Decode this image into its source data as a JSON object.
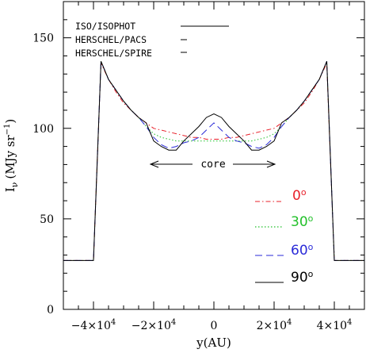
{
  "chart_data": {
    "type": "line",
    "xlabel": "y(AU)",
    "ylabel": "I",
    "ylabel_sub": "ν",
    "ylabel_unit": "(MJy sr",
    "ylabel_sup": "−1",
    "ylabel_close": ")",
    "xlim": [
      -50000,
      50000
    ],
    "ylim": [
      0,
      170
    ],
    "x_ticks": [
      {
        "value": -40000,
        "label": "−4×10",
        "exp": "4"
      },
      {
        "value": -20000,
        "label": "−2×10",
        "exp": "4"
      },
      {
        "value": 0,
        "label": "0",
        "exp": ""
      },
      {
        "value": 20000,
        "label": "2×10",
        "exp": "4"
      },
      {
        "value": 40000,
        "label": "4×10",
        "exp": "4"
      }
    ],
    "y_ticks": [
      {
        "value": 0,
        "label": "0"
      },
      {
        "value": 50,
        "label": "50"
      },
      {
        "value": 100,
        "label": "100"
      },
      {
        "value": 150,
        "label": "150"
      }
    ],
    "instrument_legend": [
      {
        "label": "ISO/ISOPHOT",
        "line": "long"
      },
      {
        "label": "HERSCHEL/PACS",
        "line": "short"
      },
      {
        "label": "HERSCHEL/SPIRE",
        "line": "short"
      }
    ],
    "annotation": {
      "text": "core",
      "x_from": -20000,
      "x_to": 20000,
      "y": 80
    },
    "series": [
      {
        "name": "0",
        "unit": "o",
        "color": "#e8202a",
        "dash": "6,3,1.5,3",
        "x": [
          -50000,
          -40000,
          -37500,
          -35000,
          -32500,
          -30000,
          -27500,
          -25000,
          -22500,
          -20000,
          -17500,
          -15000,
          -12500,
          -10000,
          -7500,
          -5000,
          -2500,
          0,
          2500,
          5000,
          7500,
          10000,
          12500,
          15000,
          17500,
          20000,
          22500,
          25000,
          27500,
          30000,
          32500,
          35000,
          37500,
          40000,
          50000
        ],
        "y": [
          27,
          27,
          136,
          127,
          120,
          114,
          110,
          106,
          103,
          100,
          99,
          98,
          97,
          96,
          95,
          95,
          94,
          94,
          94,
          95,
          95,
          96,
          97,
          98,
          99,
          100,
          103,
          106,
          110,
          114,
          120,
          127,
          136,
          27,
          27
        ]
      },
      {
        "name": "30",
        "unit": "o",
        "color": "#22c02a",
        "dash": "1.5,2.5",
        "x": [
          -50000,
          -40000,
          -37500,
          -35000,
          -32500,
          -30000,
          -27500,
          -25000,
          -22500,
          -20000,
          -17500,
          -15000,
          -12500,
          -10000,
          -7500,
          -5000,
          -2500,
          0,
          2500,
          5000,
          7500,
          10000,
          12500,
          15000,
          17500,
          20000,
          22500,
          25000,
          27500,
          30000,
          32500,
          35000,
          37500,
          40000,
          50000
        ],
        "y": [
          27,
          27,
          137,
          127,
          121,
          115,
          110,
          106,
          101,
          97,
          95,
          94,
          93,
          93,
          93,
          93,
          93,
          93,
          93,
          93,
          93,
          93,
          93,
          94,
          95,
          97,
          101,
          106,
          110,
          115,
          121,
          127,
          137,
          27,
          27
        ]
      },
      {
        "name": "60",
        "unit": "o",
        "color": "#2a2ad8",
        "dash": "9,5",
        "x": [
          -50000,
          -40000,
          -37500,
          -35000,
          -32500,
          -30000,
          -27500,
          -25000,
          -22500,
          -20000,
          -17500,
          -15000,
          -12500,
          -10000,
          -7500,
          -5000,
          -2500,
          0,
          2500,
          5000,
          7500,
          10000,
          12500,
          15000,
          17500,
          20000,
          22500,
          25000,
          27500,
          30000,
          32500,
          35000,
          37500,
          40000,
          50000
        ],
        "y": [
          27,
          27,
          137,
          127,
          121,
          115,
          110,
          106,
          101,
          95,
          91,
          89,
          90,
          92,
          93,
          95,
          99,
          103,
          99,
          95,
          93,
          92,
          90,
          89,
          91,
          95,
          101,
          106,
          110,
          115,
          121,
          127,
          137,
          27,
          27
        ]
      },
      {
        "name": "90",
        "unit": "o",
        "color": "#000000",
        "dash": "",
        "x": [
          -50000,
          -40000,
          -37500,
          -35000,
          -32500,
          -30000,
          -27500,
          -25000,
          -22500,
          -20000,
          -17500,
          -15000,
          -12500,
          -10000,
          -7500,
          -5000,
          -2500,
          0,
          2500,
          5000,
          7500,
          10000,
          12500,
          15000,
          17500,
          20000,
          22500,
          25000,
          27500,
          30000,
          32500,
          35000,
          37500,
          40000,
          50000
        ],
        "y": [
          27,
          27,
          137,
          127,
          121,
          115,
          110,
          106,
          103,
          93,
          90,
          88,
          88,
          93,
          97,
          101,
          106,
          108,
          106,
          101,
          97,
          93,
          88,
          88,
          90,
          93,
          103,
          106,
          110,
          115,
          121,
          127,
          137,
          27,
          27
        ]
      }
    ]
  }
}
